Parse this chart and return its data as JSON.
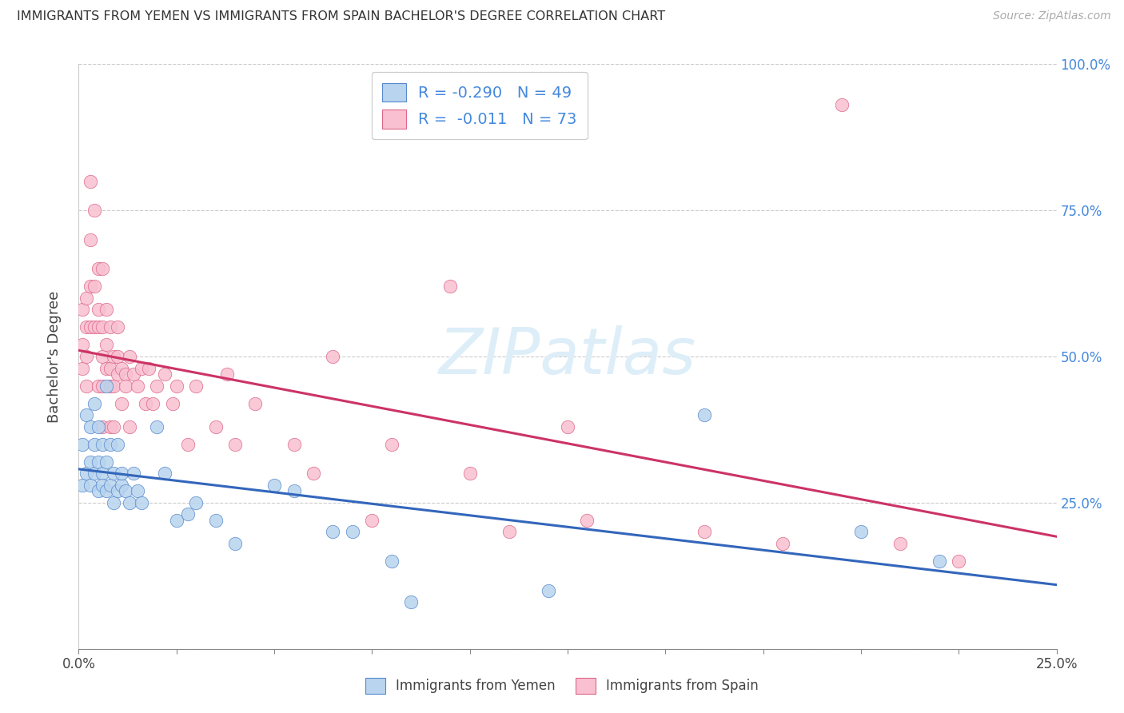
{
  "title": "IMMIGRANTS FROM YEMEN VS IMMIGRANTS FROM SPAIN BACHELOR'S DEGREE CORRELATION CHART",
  "source": "Source: ZipAtlas.com",
  "ylabel": "Bachelor's Degree",
  "xlim": [
    0.0,
    0.25
  ],
  "ylim": [
    0.0,
    1.0
  ],
  "ytick_vals": [
    0.0,
    0.25,
    0.5,
    0.75,
    1.0
  ],
  "ytick_labels_right": [
    "",
    "25.0%",
    "50.0%",
    "75.0%",
    "100.0%"
  ],
  "xtick_vals": [
    0.0,
    0.025,
    0.05,
    0.075,
    0.1,
    0.125,
    0.15,
    0.175,
    0.2,
    0.225,
    0.25
  ],
  "legend_R_blue": "-0.290",
  "legend_N_blue": "49",
  "legend_R_pink": "-0.011",
  "legend_N_pink": "73",
  "blue_fill": "#b8d4ee",
  "blue_edge": "#5588cc",
  "pink_fill": "#f8c0d0",
  "pink_edge": "#dd6688",
  "blue_line": "#3366bb",
  "pink_line": "#cc3366",
  "accent_color": "#4488dd",
  "watermark_color": "#ddeef8",
  "blue_x": [
    0.001,
    0.001,
    0.002,
    0.002,
    0.003,
    0.003,
    0.003,
    0.004,
    0.004,
    0.004,
    0.005,
    0.005,
    0.005,
    0.006,
    0.006,
    0.006,
    0.007,
    0.007,
    0.007,
    0.008,
    0.008,
    0.009,
    0.009,
    0.01,
    0.01,
    0.011,
    0.011,
    0.012,
    0.013,
    0.014,
    0.015,
    0.016,
    0.02,
    0.022,
    0.025,
    0.028,
    0.03,
    0.035,
    0.04,
    0.05,
    0.055,
    0.065,
    0.07,
    0.08,
    0.085,
    0.12,
    0.16,
    0.2,
    0.22
  ],
  "blue_y": [
    0.28,
    0.35,
    0.3,
    0.4,
    0.28,
    0.32,
    0.38,
    0.3,
    0.35,
    0.42,
    0.27,
    0.32,
    0.38,
    0.3,
    0.35,
    0.28,
    0.27,
    0.32,
    0.45,
    0.28,
    0.35,
    0.3,
    0.25,
    0.27,
    0.35,
    0.28,
    0.3,
    0.27,
    0.25,
    0.3,
    0.27,
    0.25,
    0.38,
    0.3,
    0.22,
    0.23,
    0.25,
    0.22,
    0.18,
    0.28,
    0.27,
    0.2,
    0.2,
    0.15,
    0.08,
    0.1,
    0.4,
    0.2,
    0.15
  ],
  "pink_x": [
    0.001,
    0.001,
    0.001,
    0.002,
    0.002,
    0.002,
    0.002,
    0.003,
    0.003,
    0.003,
    0.003,
    0.004,
    0.004,
    0.004,
    0.005,
    0.005,
    0.005,
    0.005,
    0.006,
    0.006,
    0.006,
    0.006,
    0.006,
    0.007,
    0.007,
    0.007,
    0.008,
    0.008,
    0.008,
    0.008,
    0.009,
    0.009,
    0.009,
    0.01,
    0.01,
    0.01,
    0.011,
    0.011,
    0.012,
    0.012,
    0.013,
    0.013,
    0.014,
    0.015,
    0.016,
    0.017,
    0.018,
    0.019,
    0.02,
    0.022,
    0.024,
    0.025,
    0.028,
    0.03,
    0.035,
    0.038,
    0.04,
    0.045,
    0.055,
    0.06,
    0.065,
    0.075,
    0.08,
    0.095,
    0.1,
    0.11,
    0.125,
    0.13,
    0.16,
    0.18,
    0.195,
    0.21,
    0.225
  ],
  "pink_y": [
    0.48,
    0.52,
    0.58,
    0.5,
    0.55,
    0.6,
    0.45,
    0.55,
    0.62,
    0.7,
    0.8,
    0.62,
    0.55,
    0.75,
    0.55,
    0.65,
    0.58,
    0.45,
    0.5,
    0.55,
    0.65,
    0.45,
    0.38,
    0.48,
    0.52,
    0.58,
    0.48,
    0.55,
    0.45,
    0.38,
    0.5,
    0.45,
    0.38,
    0.47,
    0.5,
    0.55,
    0.48,
    0.42,
    0.47,
    0.45,
    0.5,
    0.38,
    0.47,
    0.45,
    0.48,
    0.42,
    0.48,
    0.42,
    0.45,
    0.47,
    0.42,
    0.45,
    0.35,
    0.45,
    0.38,
    0.47,
    0.35,
    0.42,
    0.35,
    0.3,
    0.5,
    0.22,
    0.35,
    0.62,
    0.3,
    0.2,
    0.38,
    0.22,
    0.2,
    0.18,
    0.93,
    0.18,
    0.15
  ]
}
